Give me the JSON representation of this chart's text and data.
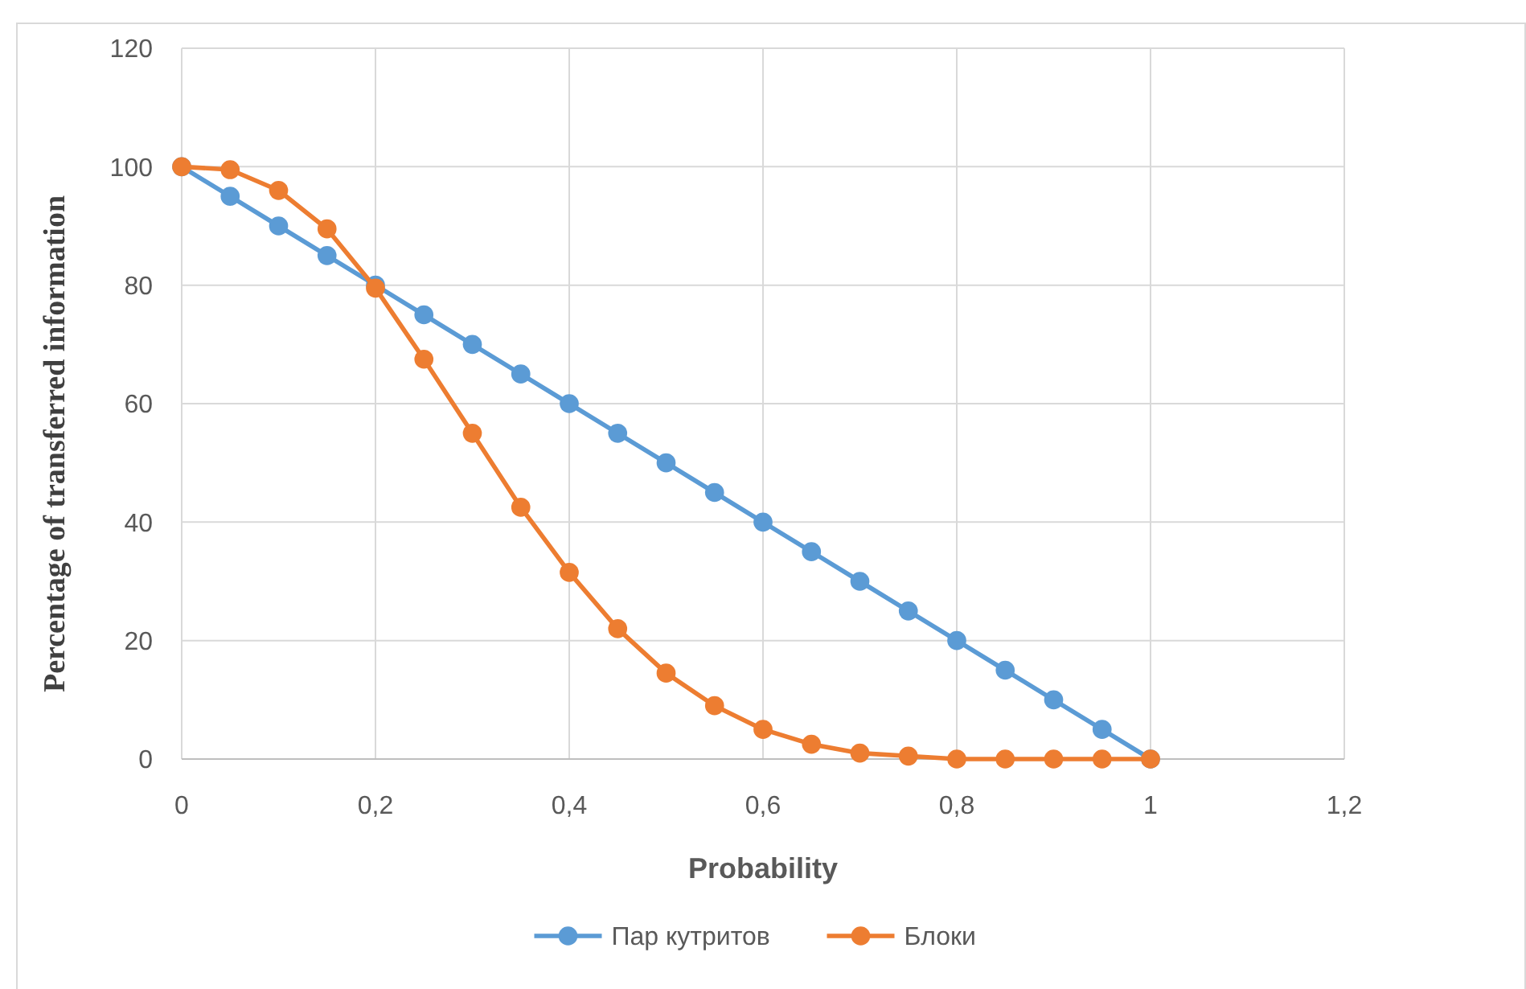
{
  "chart_data": {
    "type": "line",
    "xlabel": "Probability",
    "ylabel": "Percentage of transferred information",
    "x": [
      0,
      0.05,
      0.1,
      0.15,
      0.2,
      0.25,
      0.3,
      0.35,
      0.4,
      0.45,
      0.5,
      0.55,
      0.6,
      0.65,
      0.7,
      0.75,
      0.8,
      0.85,
      0.9,
      0.95,
      1
    ],
    "series": [
      {
        "name": "Пар кутритов",
        "color": "#5b9bd5",
        "values": [
          100,
          95,
          90,
          85,
          80,
          75,
          70,
          65,
          60,
          55,
          50,
          45,
          40,
          35,
          30,
          25,
          20,
          15,
          10,
          5,
          0
        ]
      },
      {
        "name": "Блоки",
        "color": "#ed7d31",
        "values": [
          100,
          99.5,
          96,
          89.5,
          79.5,
          67.5,
          55,
          42.5,
          31.5,
          22,
          14.5,
          9,
          5,
          2.5,
          1,
          0.5,
          0,
          0,
          0,
          0,
          0
        ]
      }
    ],
    "xlim": [
      0,
      1.2
    ],
    "xticks": [
      {
        "value": 0,
        "label": "0"
      },
      {
        "value": 0.2,
        "label": "0,2"
      },
      {
        "value": 0.4,
        "label": "0,4"
      },
      {
        "value": 0.6,
        "label": "0,6"
      },
      {
        "value": 0.8,
        "label": "0,8"
      },
      {
        "value": 1,
        "label": "1"
      },
      {
        "value": 1.2,
        "label": "1,2"
      }
    ],
    "ylim": [
      0,
      120
    ],
    "yticks": [
      0,
      20,
      40,
      60,
      80,
      100,
      120
    ],
    "grid": true,
    "legend": "bottom",
    "marker": "circle",
    "line_style": "solid"
  }
}
